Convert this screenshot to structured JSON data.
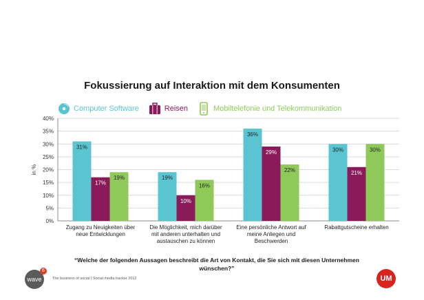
{
  "chart_data": {
    "type": "bar",
    "title": "Fokussierung auf Interaktion mit dem Konsumenten",
    "ylabel": "in %",
    "ylim": [
      0,
      40
    ],
    "yticks": [
      "0%",
      "5%",
      "10%",
      "15%",
      "20%",
      "25%",
      "30%",
      "35%",
      "40%"
    ],
    "grid": true,
    "legend_position": "top",
    "categories": [
      [
        "Zugang zu Neuigkeiten über",
        "neue Entwicklungen"
      ],
      [
        "Die Möglichkeit, mich darüber",
        "mit anderen unterhalten und",
        "austauschen zu können"
      ],
      [
        "Eine persönliche Antwort auf",
        "meine Anliegen und",
        "Beschwerden"
      ],
      [
        "Rabattgutscheine erhalten"
      ]
    ],
    "series": [
      {
        "name": "Computer Software",
        "color": "#5bc4d1",
        "icon": "cd-disc-icon",
        "values": [
          31,
          19,
          36,
          30
        ],
        "labels": [
          "31%",
          "19%",
          "36%",
          "30%"
        ]
      },
      {
        "name": "Reisen",
        "color": "#8b1a5a",
        "icon": "suitcase-icon",
        "values": [
          17,
          10,
          29,
          21
        ],
        "labels": [
          "17%",
          "10%",
          "29%",
          "21%"
        ]
      },
      {
        "name": "Mobiltelefonie und Telekommunikation",
        "color": "#8fc95a",
        "icon": "mobile-phone-icon",
        "values": [
          19,
          16,
          22,
          30
        ],
        "labels": [
          "19%",
          "16%",
          "22%",
          "30%"
        ]
      }
    ]
  },
  "question": "“Welche der folgenden Aussagen beschreibt die Art von Kontakt, die Sie sich mit diesen Unternehmen wünschen?”",
  "footer": {
    "logo_text": "wave",
    "logo_badge": "6",
    "source": "The business of social | Social media tracker 2012",
    "um_logo": "UM"
  }
}
